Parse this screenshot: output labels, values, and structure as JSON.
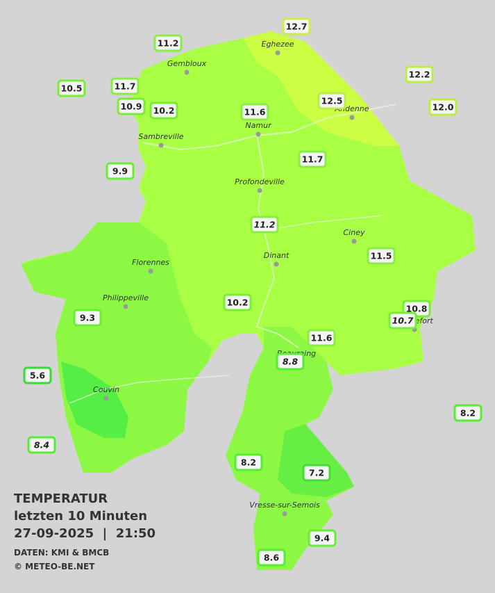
{
  "legend": {
    "title": "TEMPERATUR",
    "subtitle": "letzten 10 Minuten",
    "datetime": "27-09-2025  |  21:50",
    "source": "DATEN: KMI & BMCB",
    "credit": "© METEO-BE.NET"
  },
  "places": [
    "Eghezee",
    "Gembloux",
    "Andenne",
    "Namur",
    "Sambreville",
    "Profondeville",
    "Ciney",
    "Dinant",
    "Florennes",
    "Philippeville",
    "Beauraing",
    "Rochefort",
    "Couvin",
    "Vresse-sur-Semois"
  ],
  "stations": [
    "12.7",
    "11.2",
    "12.2",
    "10.5",
    "11.7",
    "10.9",
    "10.2",
    "11.6",
    "12.5",
    "12.0",
    "9.9",
    "11.7",
    "11.2",
    "11.5",
    "10.8",
    "10.7",
    "10.2",
    "9.3",
    "11.6",
    "8.8",
    "5.6",
    "8.4",
    "8.2",
    "8.2",
    "7.2",
    "9.4",
    "8.6"
  ]
}
